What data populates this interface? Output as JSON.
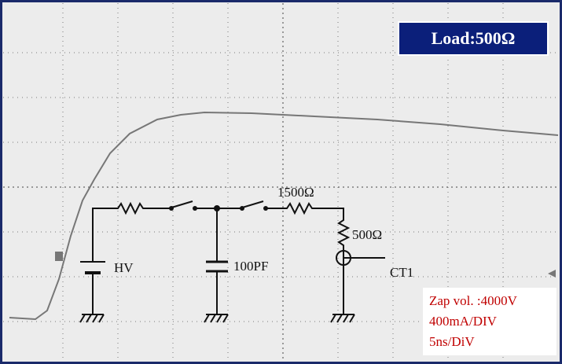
{
  "load_label": "Load:500Ω",
  "circuit": {
    "series_resistor": "1500Ω",
    "load_resistor": "500Ω",
    "source": "HV",
    "capacitor": "100PF",
    "probe": "CT1"
  },
  "settings": [
    "Zap vol. :4000V",
    "400mA/DIV",
    "5ns/DiV"
  ]
}
